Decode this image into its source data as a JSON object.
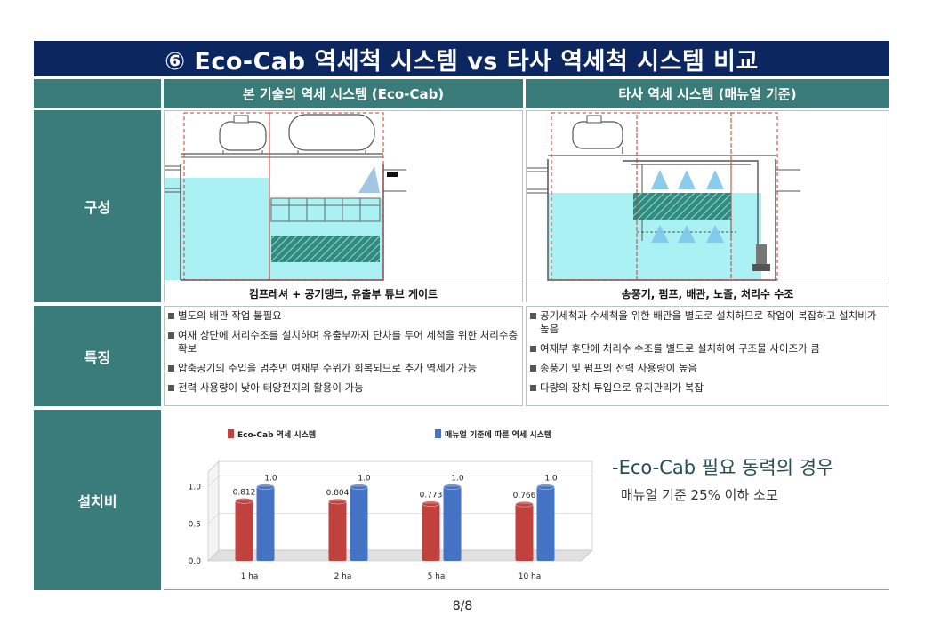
{
  "title": "⑥ Eco-Cab 역세척 시스템 vs 타사 역세척 시스템 비교",
  "columns": {
    "left": "본 기술의 역세 시스템 (Eco-Cab)",
    "right": "타사 역세 시스템 (매뉴얼 기준)"
  },
  "rows": {
    "composition": "구성",
    "features": "특징",
    "cost": "설치비"
  },
  "composition": {
    "left_caption": "컴프레셔 + 공기탱크,  유출부 튜브 게이트",
    "right_caption": "송풍기, 펌프, 배관, 노즐, 처리수 수조"
  },
  "features": {
    "left": [
      "별도의 배관 작업 불필요",
      "여재 상단에 처리수조를 설치하며 유출부까지 단차를 두어 세척을 위한 처리수층 확보",
      "압축공기의 주입을 멈추면 여재부 수위가 회복되므로 추가 역세가 가능",
      "전력 사용량이 낮아 태양전지의 활용이 가능"
    ],
    "right": [
      "공기세척과 수세척을 위한 배관을 별도로 설치하므로 작업이 복잡하고 설치비가 높음",
      "여재부 후단에 처리수 수조를 별도로 설치하여 구조물 사이즈가 큼",
      "송풍기 및 펌프의 전력 사용량이 높음",
      "다량의 장치 투입으로 유지관리가 복잡"
    ]
  },
  "note": {
    "title": "-Eco-Cab 필요 동력의 경우",
    "subtitle": "매뉴얼 기준 25% 이하 소모"
  },
  "page_number": "8/8",
  "colors": {
    "navy": "#0c2660",
    "teal": "#3a7c7a",
    "red_bar": "#c0413e",
    "blue_bar": "#4472c4",
    "water": "#aaf1f4"
  },
  "chart_data": {
    "type": "bar",
    "categories": [
      "1 ha",
      "2 ha",
      "5 ha",
      "10 ha"
    ],
    "series": [
      {
        "name": "Eco-Cab  역세 시스템",
        "values": [
          0.812,
          0.804,
          0.773,
          0.766
        ],
        "labels": [
          "0.812",
          "0.804",
          "0.773",
          "0.766"
        ],
        "color": "#c0413e"
      },
      {
        "name": "매뉴얼 기준에 따른 역세 시스템",
        "values": [
          1.0,
          1.0,
          1.0,
          1.0
        ],
        "labels": [
          "1.0",
          "1.0",
          "1.0",
          "1.0"
        ],
        "color": "#4472c4"
      }
    ],
    "y_ticks": [
      "0.0",
      "0.5",
      "1.0"
    ],
    "ylim": [
      0,
      1.2
    ],
    "legend": "top",
    "grid": true
  }
}
